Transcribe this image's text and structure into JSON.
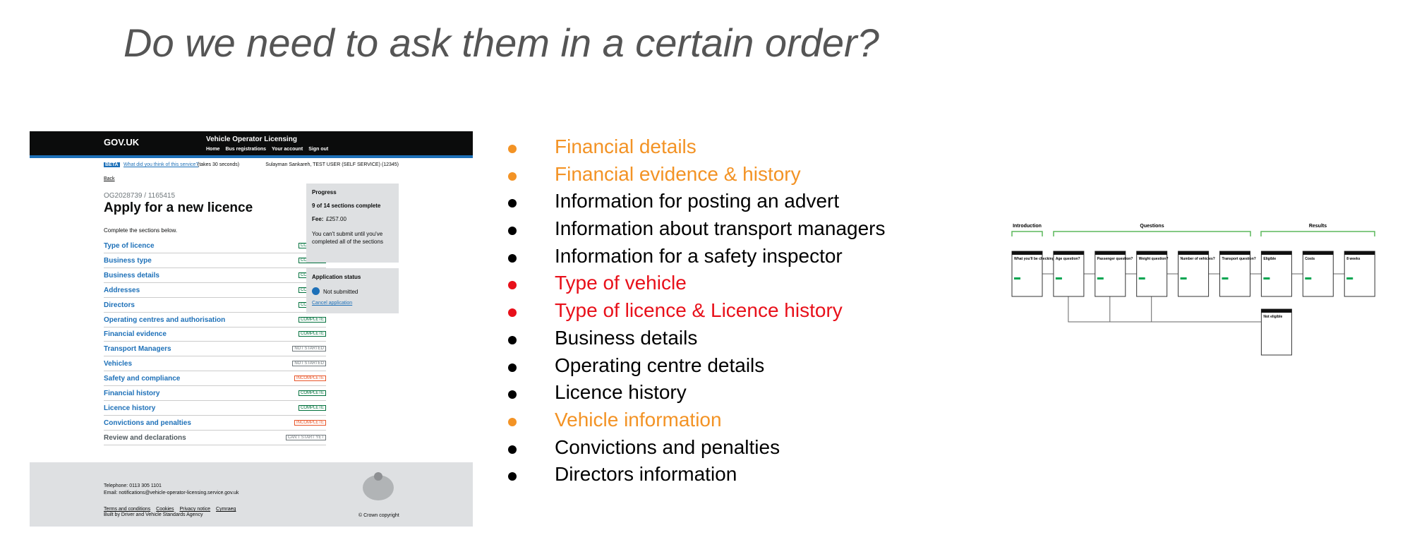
{
  "title": "Do we need to ask them in a certain order?",
  "screenshot": {
    "header": {
      "logo": "GOV.UK",
      "service": "Vehicle Operator Licensing",
      "nav": [
        "Home",
        "Bus registrations",
        "Your account",
        "Sign out"
      ]
    },
    "beta": {
      "tag": "BETA",
      "link": "What did you think of this service?",
      "note": "(takes 30 seconds)",
      "user": "Sulayman Sankareh, TEST USER (SELF SERVICE) (12345)"
    },
    "back": "Back",
    "reference": "OG2028739 / 1165415",
    "heading": "Apply for a new licence",
    "intro": "Complete the sections below.",
    "sections": [
      {
        "label": "Type of licence",
        "status": "COMPLETE",
        "color": "#00703c"
      },
      {
        "label": "Business type",
        "status": "COMPLETE",
        "color": "#00703c"
      },
      {
        "label": "Business details",
        "status": "COMPLETE",
        "color": "#00703c"
      },
      {
        "label": "Addresses",
        "status": "COMPLETE",
        "color": "#00703c"
      },
      {
        "label": "Directors",
        "status": "COMPLETE",
        "color": "#00703c"
      },
      {
        "label": "Operating centres and authorisation",
        "status": "COMPLETE",
        "color": "#00703c"
      },
      {
        "label": "Financial evidence",
        "status": "COMPLETE",
        "color": "#00703c"
      },
      {
        "label": "Transport Managers",
        "status": "NOT STARTED",
        "color": "#6f777b"
      },
      {
        "label": "Vehicles",
        "status": "NOT STARTED",
        "color": "#6f777b"
      },
      {
        "label": "Safety and compliance",
        "status": "INCOMPLETE",
        "color": "#e8562a"
      },
      {
        "label": "Financial history",
        "status": "COMPLETE",
        "color": "#00703c"
      },
      {
        "label": "Licence history",
        "status": "COMPLETE",
        "color": "#00703c"
      },
      {
        "label": "Convictions and penalties",
        "status": "INCOMPLETE",
        "color": "#e8562a"
      },
      {
        "label": "Review and declarations",
        "status": "CAN'T START YET",
        "color": "#6f777b"
      }
    ],
    "progress": {
      "title": "Progress",
      "count": "9 of 14 sections complete",
      "fee_label": "Fee:",
      "fee": "£257.00",
      "note": "You can't submit until you've completed all of the sections"
    },
    "status_box": {
      "title": "Application status",
      "status": "Not submitted",
      "link": "Cancel application"
    },
    "footer": {
      "telephone": "Telephone: 0113 305 1101",
      "email": "Email: notifications@vehicle-operator-licensing.service.gov.uk",
      "links": [
        "Terms and conditions",
        "Cookies",
        "Privacy notice",
        "Cymraeg"
      ],
      "built": "Built by Driver and Vehicle Standards Agency",
      "copyright": "© Crown copyright"
    }
  },
  "list": [
    {
      "text": "Financial details",
      "color": "#f39325"
    },
    {
      "text": "Financial evidence & history",
      "color": "#f39325"
    },
    {
      "text": "Information for posting an advert",
      "color": "#000000"
    },
    {
      "text": "Information about transport managers",
      "color": "#000000"
    },
    {
      "text": "Information for a safety inspector",
      "color": "#000000"
    },
    {
      "text": "Type of vehicle",
      "color": "#e8101a"
    },
    {
      "text": "Type of licence & Licence history",
      "color": "#e8101a"
    },
    {
      "text": "Business details",
      "color": "#000000"
    },
    {
      "text": "Operating centre details",
      "color": "#000000"
    },
    {
      "text": "Licence history",
      "color": "#000000"
    },
    {
      "text": "Vehicle information",
      "color": "#f39325"
    },
    {
      "text": "Convictions and penalties",
      "color": "#000000"
    },
    {
      "text": "Directors information",
      "color": "#000000"
    }
  ],
  "diagram": {
    "groups": [
      "Introduction",
      "Questions",
      "Results"
    ],
    "nodes": [
      "What you'll be checking",
      "Age question?",
      "Passenger question?",
      "Weight question?",
      "Number of vehicles?",
      "Transport question?",
      "Eligible",
      "Costs",
      "8 weeks"
    ],
    "fail_node": "Not eligible"
  }
}
